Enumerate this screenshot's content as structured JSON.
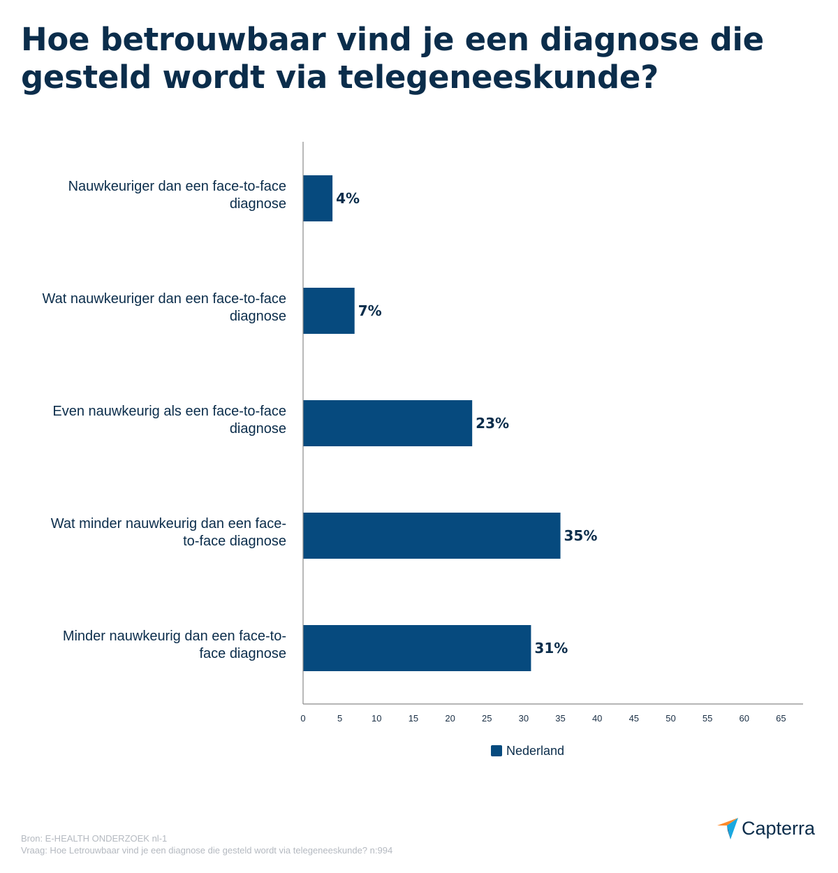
{
  "title": {
    "line1": "Hoe betrouwbaar vind je een diagnose die",
    "line2": "gesteld wordt via telegeneeskunde?"
  },
  "colors": {
    "bar": "#064a7e",
    "title": "#0b2d4b",
    "axis": "#8a8a8a",
    "footer": "#b4b9c0",
    "logo_orange": "#ff8a2a",
    "logo_blue": "#1aa8e0",
    "logo_navy": "#0b3b66"
  },
  "chart_data": {
    "type": "bar",
    "orientation": "horizontal",
    "title": "Hoe betrouwbaar vind je een diagnose die gesteld wordt via telegeneeskunde?",
    "categories": [
      [
        "Nauwkeuriger dan een face-to-face",
        "diagnose"
      ],
      [
        "Wat nauwkeuriger dan een face-to-face",
        "diagnose"
      ],
      [
        "Even nauwkeurig als een face-to-face",
        "diagnose"
      ],
      [
        "Wat minder nauwkeurig dan een face-",
        "to-face diagnose"
      ],
      [
        "Minder nauwkeurig dan een face-to-",
        "face diagnose"
      ]
    ],
    "series": [
      {
        "name": "Nederland",
        "values": [
          4,
          7,
          23,
          35,
          31
        ],
        "labels": [
          "4%",
          "7%",
          "23%",
          "35%",
          "31%"
        ]
      }
    ],
    "xlim": [
      0,
      68
    ],
    "xticks": [
      0,
      5,
      10,
      15,
      20,
      25,
      30,
      35,
      40,
      45,
      50,
      55,
      60,
      65
    ],
    "xlabel": "",
    "ylabel": "",
    "grid": false,
    "legend": "bottom-center"
  },
  "footer": {
    "source": "Bron: E-HEALTH ONDERZOEK nl-1",
    "question": "Vraag: Hoe Letrouwbaar vind je een diagnose die gesteld wordt via telegeneeskunde? n:994"
  },
  "brand": {
    "name": "Capterra",
    "icon": "capterra-logo-icon"
  }
}
